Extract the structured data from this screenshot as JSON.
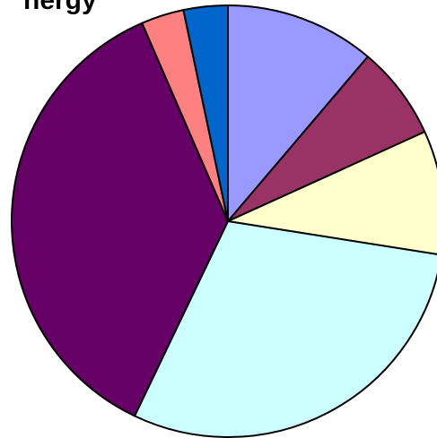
{
  "chart_data": {
    "type": "pie",
    "title": "nergy",
    "start_angle_deg": 0,
    "direction": "clockwise",
    "slices": [
      {
        "value": 11.2,
        "color": "#9999FF"
      },
      {
        "value": 7.0,
        "color": "#993366"
      },
      {
        "value": 9.3,
        "color": "#FFFFCC"
      },
      {
        "value": 29.6,
        "color": "#CCFFFF"
      },
      {
        "value": 36.4,
        "color": "#660066"
      },
      {
        "value": 3.2,
        "color": "#FF8080"
      },
      {
        "value": 3.3,
        "color": "#0066CC"
      }
    ],
    "legend": "none",
    "grid": false
  }
}
